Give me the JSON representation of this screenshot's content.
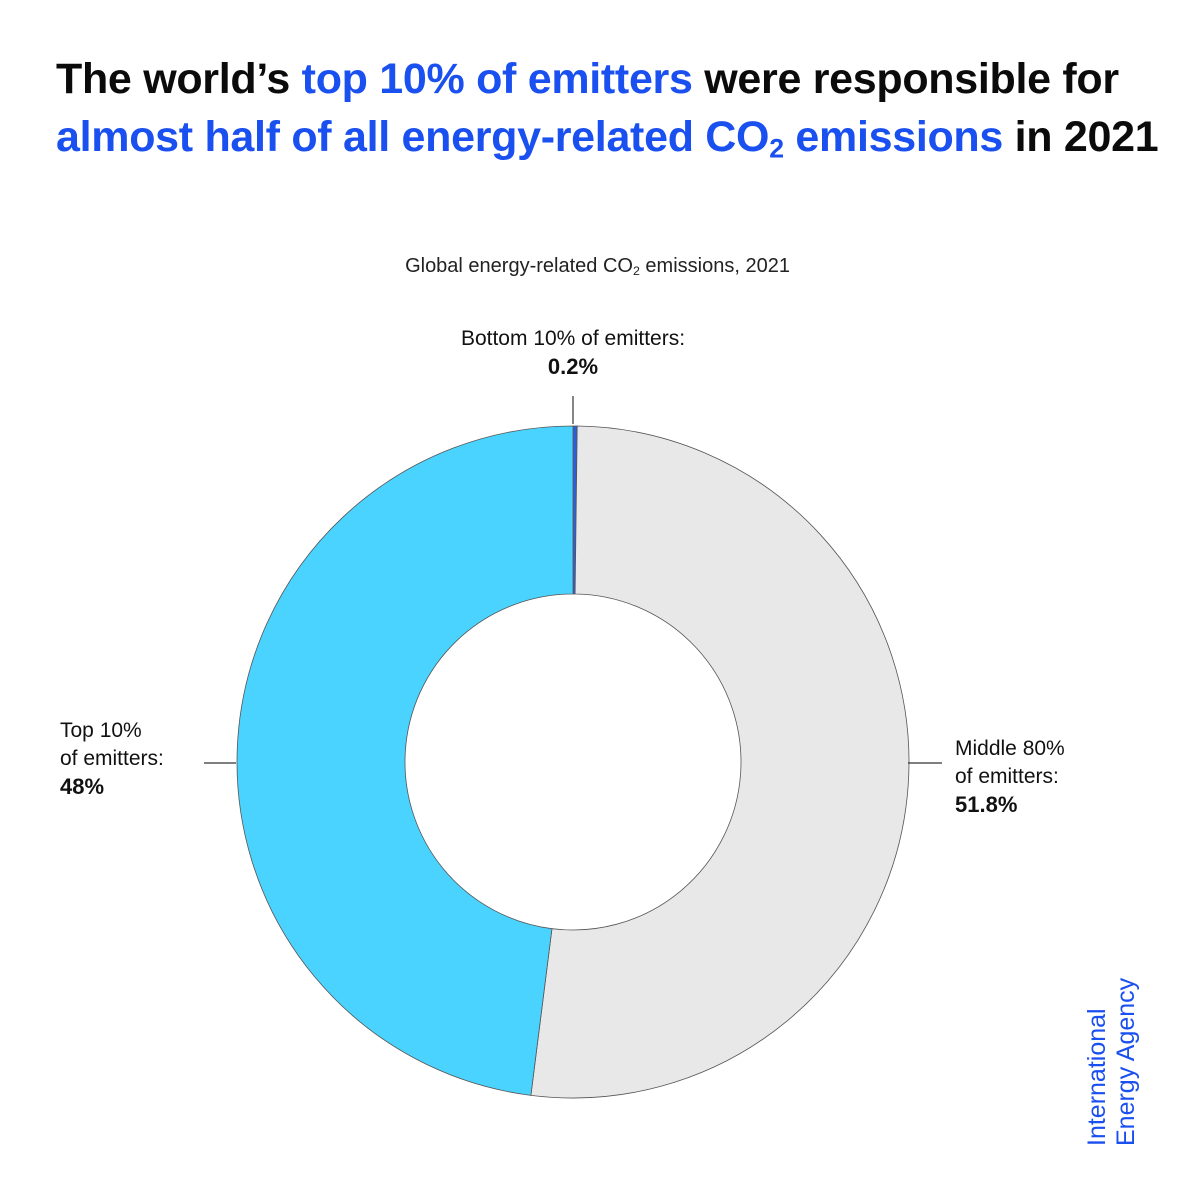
{
  "headline": {
    "p1": "The world’s ",
    "h1": "top 10% of emitters",
    "p2": " were responsible for ",
    "h2": "almost half of all energy-related CO",
    "h2_sub": "2",
    "h3": " emissions",
    "p3": " in 2021"
  },
  "colors": {
    "accent": "#1a4ff0",
    "top10": "#4ad3ff",
    "middle80": "#e8e8e8",
    "bottom10": "#2f5fd6"
  },
  "chart_data": {
    "type": "pie",
    "donut": true,
    "title_main": "Global energy-related CO",
    "title_sub": "2",
    "title_rest": " emissions, 2021",
    "slices": [
      {
        "label_lines": [
          "Bottom 10% of emitters:"
        ],
        "value": 0.2,
        "value_label": "0.2%",
        "color": "#2f5fd6"
      },
      {
        "label_lines": [
          "Middle 80%",
          "of emitters:"
        ],
        "value": 51.8,
        "value_label": "51.8%",
        "color": "#e8e8e8"
      },
      {
        "label_lines": [
          "Top 10%",
          "of emitters:"
        ],
        "value": 48,
        "value_label": "48%",
        "color": "#4ad3ff"
      }
    ]
  },
  "logo": {
    "line1": "International",
    "line2": "Energy Agency"
  }
}
